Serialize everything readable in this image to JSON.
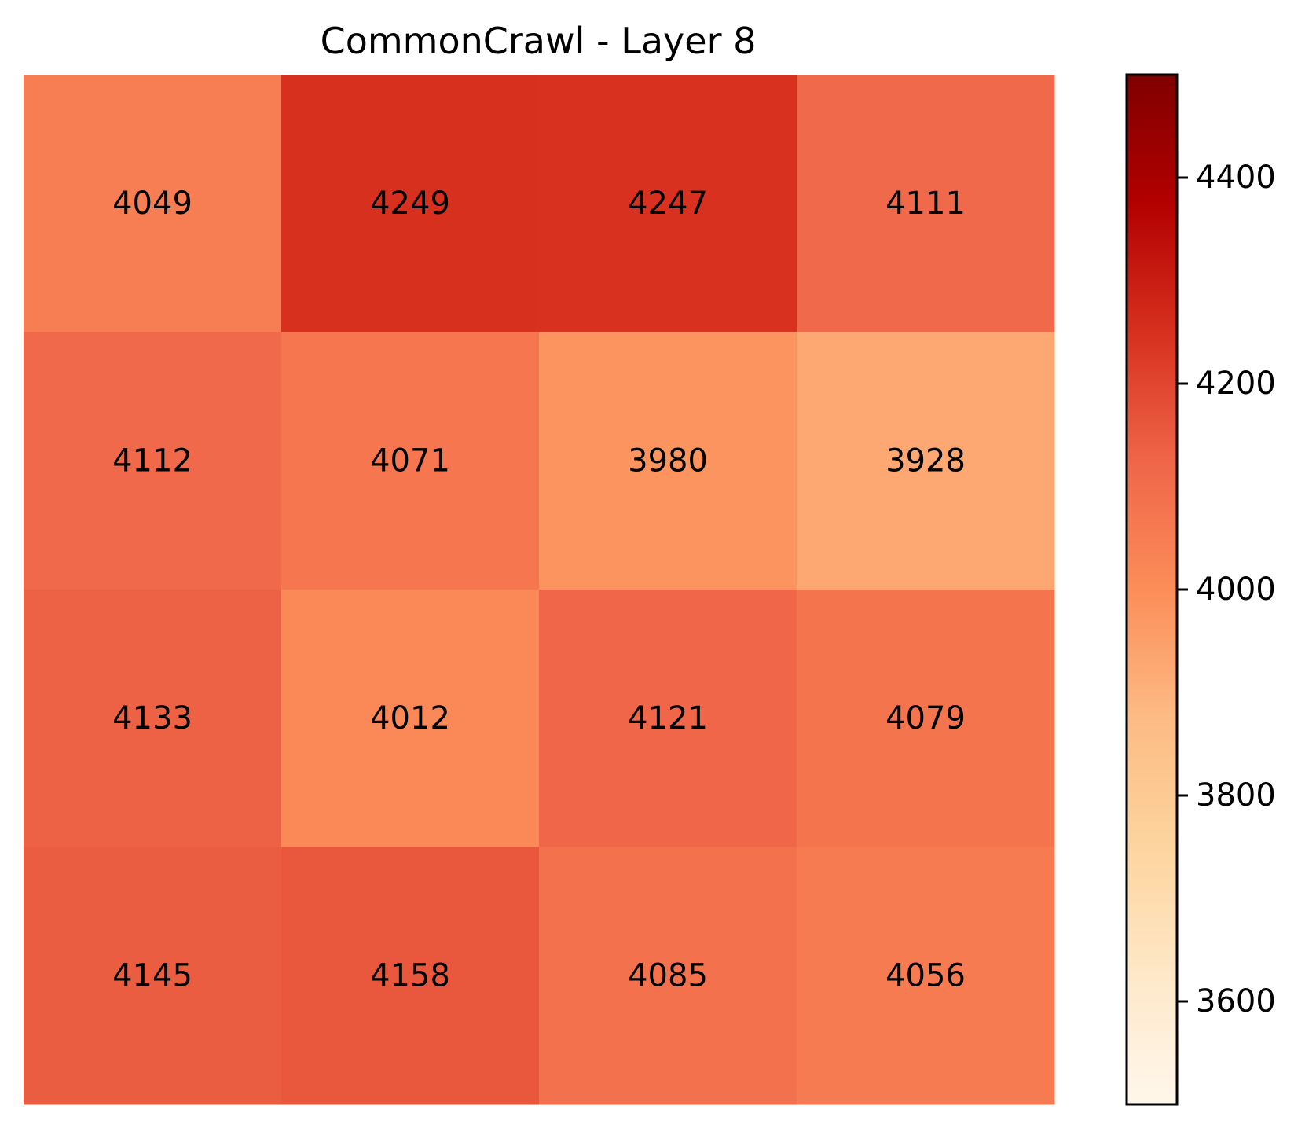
{
  "chart_data": {
    "type": "heatmap",
    "title": "CommonCrawl - Layer 8",
    "xlabel": "",
    "ylabel": "",
    "rows": 4,
    "cols": 4,
    "values": [
      [
        4049,
        4249,
        4247,
        4111
      ],
      [
        4112,
        4071,
        3980,
        3928
      ],
      [
        4133,
        4012,
        4121,
        4079
      ],
      [
        4145,
        4158,
        4085,
        4056
      ]
    ],
    "colorbar": {
      "range": [
        3500,
        4500
      ],
      "ticks": [
        3600,
        3800,
        4000,
        4200,
        4400
      ],
      "colormap": "OrRd",
      "colormap_stops": [
        "#fff7ec",
        "#fee8c8",
        "#fdd49e",
        "#fdbb84",
        "#fc8d59",
        "#ef6548",
        "#d7301f",
        "#b30000",
        "#7f0000"
      ]
    },
    "grid": false
  }
}
